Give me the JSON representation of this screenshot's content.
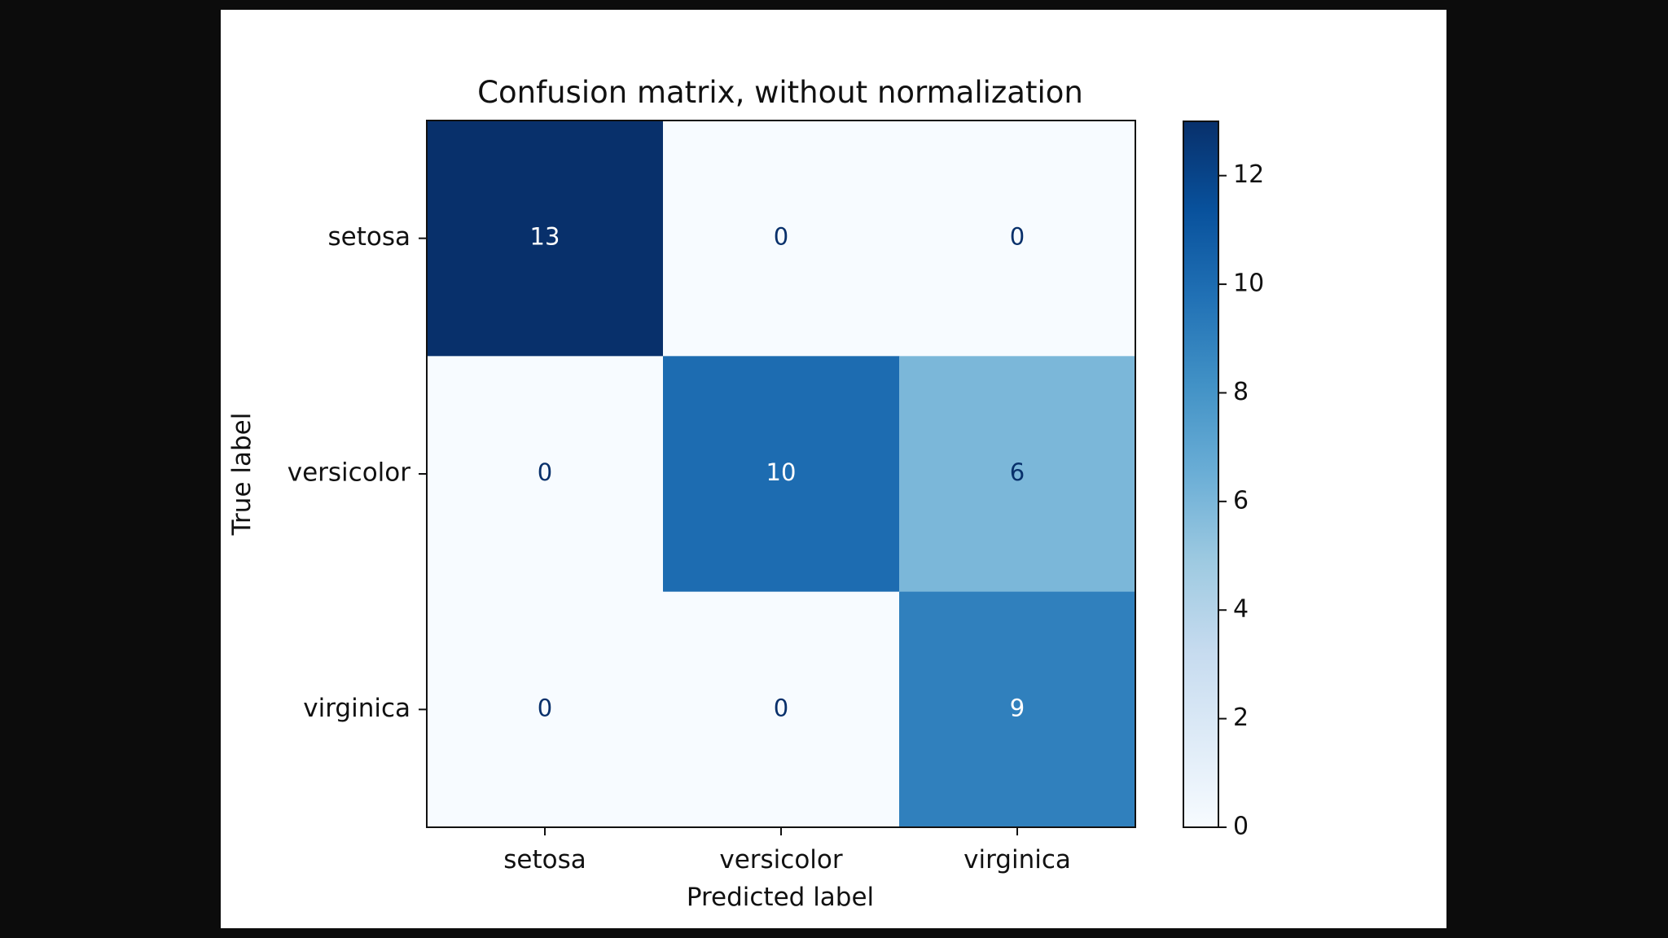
{
  "chart_data": {
    "type": "heatmap",
    "title": "Confusion matrix, without normalization",
    "xlabel": "Predicted label",
    "ylabel": "True label",
    "x_categories": [
      "setosa",
      "versicolor",
      "virginica"
    ],
    "y_categories": [
      "setosa",
      "versicolor",
      "virginica"
    ],
    "matrix": [
      [
        13,
        0,
        0
      ],
      [
        0,
        10,
        6
      ],
      [
        0,
        0,
        9
      ]
    ],
    "colormap": "Blues",
    "colorbar": {
      "min": 0,
      "max": 13,
      "ticks": [
        "0",
        "2",
        "4",
        "6",
        "8",
        "10",
        "12"
      ]
    }
  },
  "colors": {
    "cell_low": "#f7fbff",
    "cell_high": "#08306b",
    "text_on_light": "#08306b",
    "text_on_dark": "#ffffff"
  }
}
